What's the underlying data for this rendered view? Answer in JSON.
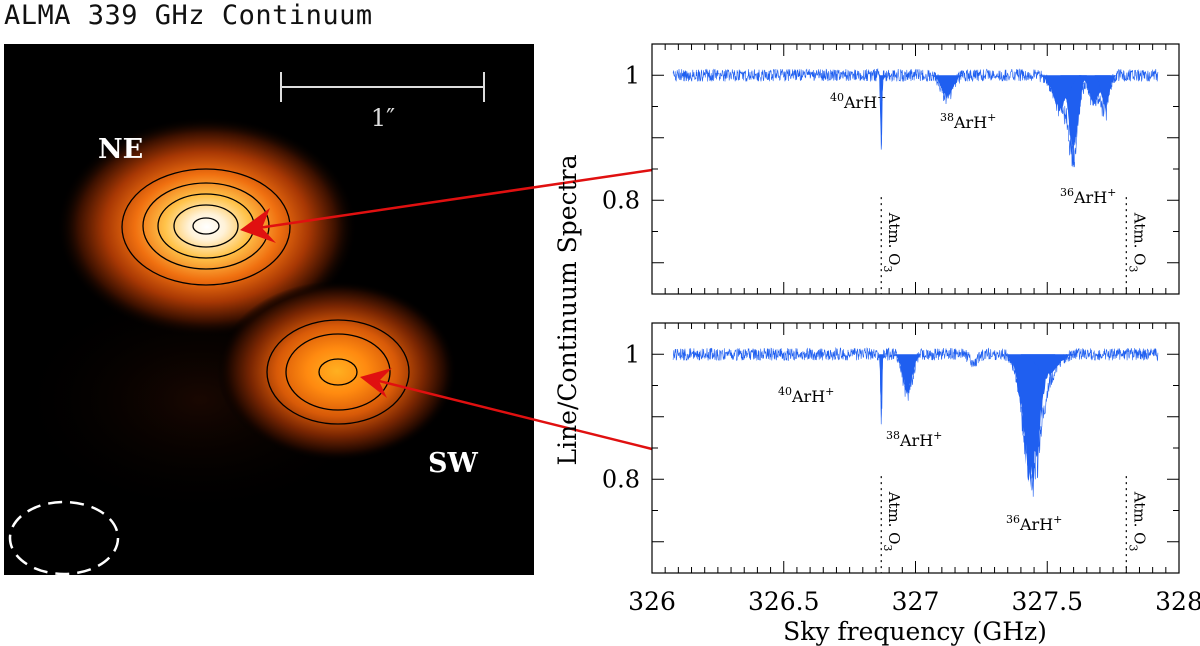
{
  "figure_title": "ALMA 339 GHz Continuum",
  "colors": {
    "spectrum": "#1f5ff0",
    "arrow": "#e01010",
    "axis": "#000000"
  },
  "image_panel": {
    "scale_bar_label": "1″",
    "sources": [
      {
        "label": "NE"
      },
      {
        "label": "SW"
      }
    ],
    "beam": "dashed-ellipse"
  },
  "chart_data": [
    {
      "type": "line",
      "panel": "NE",
      "x_range": [
        326,
        328
      ],
      "ylim": [
        0.65,
        1.05
      ],
      "y_ticks": [
        0.8,
        1
      ],
      "y_tick_labels": [
        "0.8",
        "1"
      ],
      "annotations": [
        {
          "label_sup": "40",
          "label_main": "ArH",
          "label_ion": "+",
          "x": 326.87,
          "depth": 0.88
        },
        {
          "label_sup": "38",
          "label_main": "ArH",
          "label_ion": "+",
          "x": 327.12,
          "depth": 0.96
        },
        {
          "label_sup": "36",
          "label_main": "ArH",
          "label_ion": "+",
          "x": 327.6,
          "depth": 0.86
        }
      ],
      "atm_lines": [
        {
          "label_main": "Atm. O",
          "label_sub": "3",
          "x": 326.87
        },
        {
          "label_main": "Atm. O",
          "label_sub": "3",
          "x": 327.8
        }
      ]
    },
    {
      "type": "line",
      "panel": "SW",
      "x_range": [
        326,
        328
      ],
      "ylim": [
        0.65,
        1.05
      ],
      "y_ticks": [
        0.8,
        1
      ],
      "y_tick_labels": [
        "0.8",
        "1"
      ],
      "annotations": [
        {
          "label_sup": "40",
          "label_main": "ArH",
          "label_ion": "+",
          "x": 326.87,
          "depth": 0.88
        },
        {
          "label_sup": "38",
          "label_main": "ArH",
          "label_ion": "+",
          "x": 326.97,
          "depth": 0.93
        },
        {
          "label_sup": "36",
          "label_main": "ArH",
          "label_ion": "+",
          "x": 327.44,
          "depth": 0.78
        }
      ],
      "atm_lines": [
        {
          "label_main": "Atm. O",
          "label_sub": "3",
          "x": 326.87
        },
        {
          "label_main": "Atm. O",
          "label_sub": "3",
          "x": 327.8
        }
      ]
    }
  ],
  "axes": {
    "xlabel": "Sky frequency (GHz)",
    "ylabel": "Line/Continuum Spectra",
    "x_ticks": [
      326,
      326.5,
      327,
      327.5,
      328
    ],
    "x_tick_labels": [
      "326",
      "326.5",
      "327",
      "327.5",
      "328"
    ]
  }
}
